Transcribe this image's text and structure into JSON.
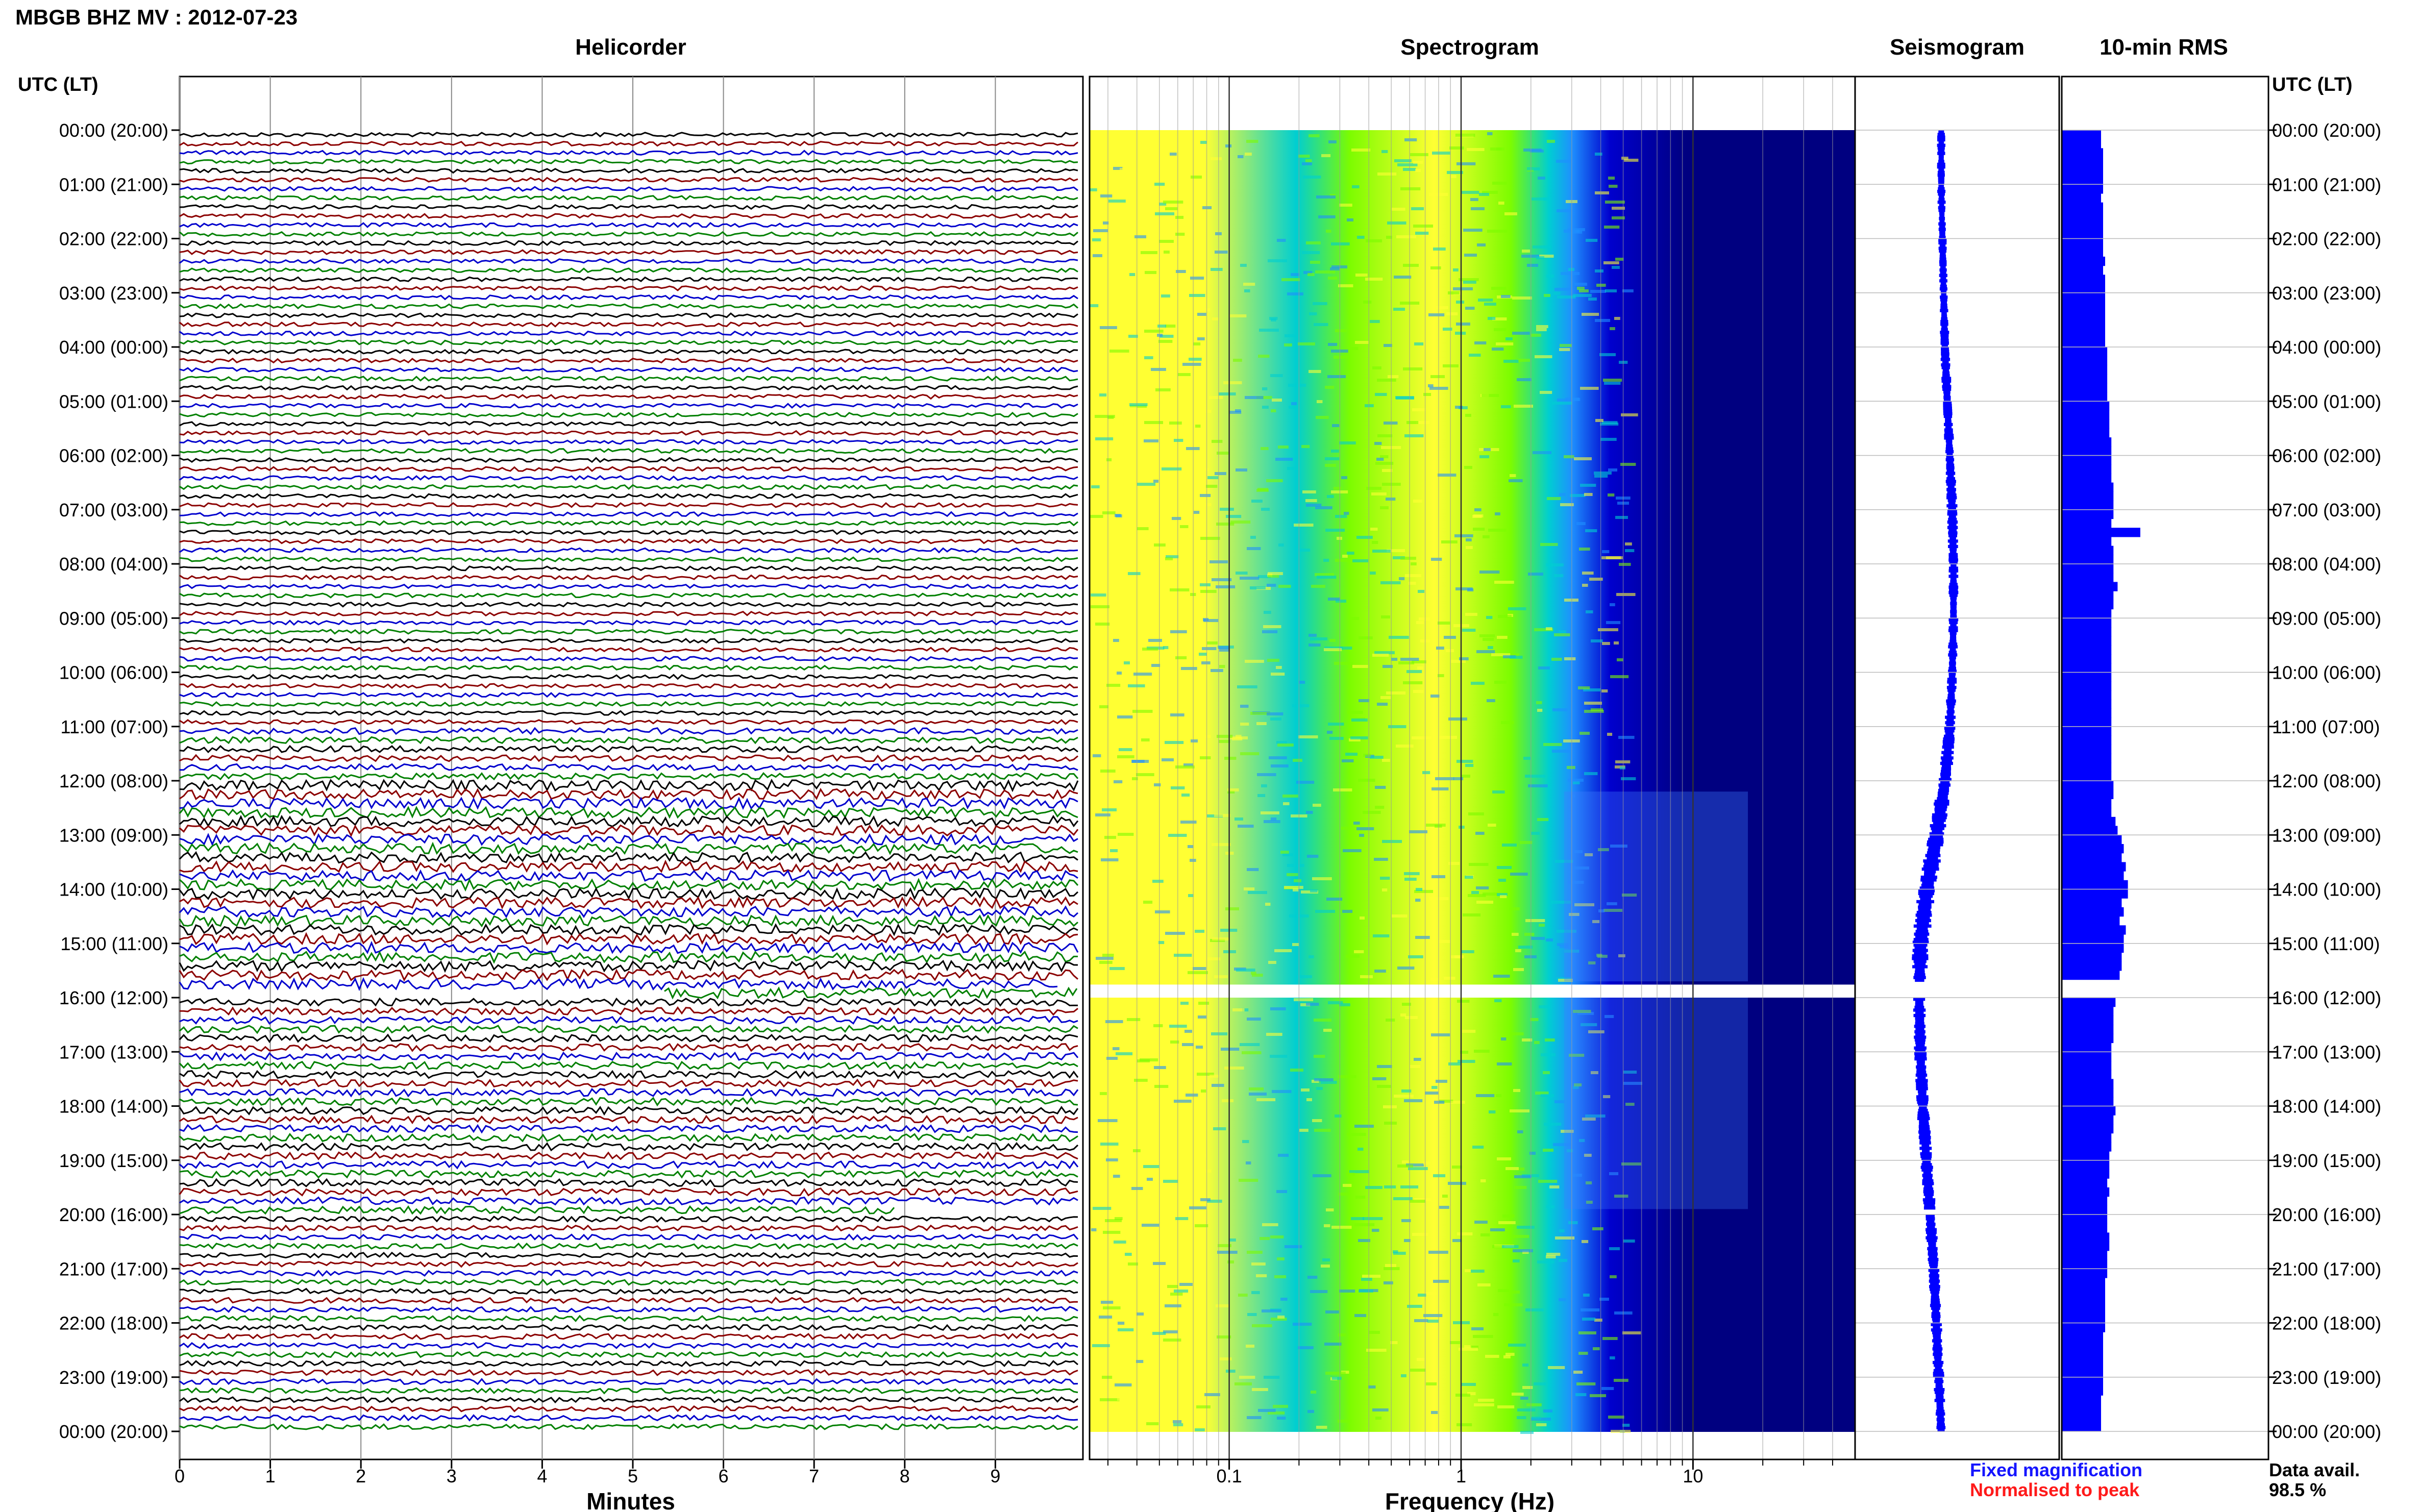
{
  "title": "MBGB BHZ MV : 2012-07-23",
  "panels": {
    "helicorder": "Helicorder",
    "spectrogram": "Spectrogram",
    "seismogram": "Seismogram",
    "rms": "10-min RMS"
  },
  "time_axis_title": "UTC (LT)",
  "time_labels": [
    "00:00 (20:00)",
    "01:00 (21:00)",
    "02:00 (22:00)",
    "03:00 (23:00)",
    "04:00 (00:00)",
    "05:00 (01:00)",
    "06:00 (02:00)",
    "07:00 (03:00)",
    "08:00 (04:00)",
    "09:00 (05:00)",
    "10:00 (06:00)",
    "11:00 (07:00)",
    "12:00 (08:00)",
    "13:00 (09:00)",
    "14:00 (10:00)",
    "15:00 (11:00)",
    "16:00 (12:00)",
    "17:00 (13:00)",
    "18:00 (14:00)",
    "19:00 (15:00)",
    "20:00 (16:00)",
    "21:00 (17:00)",
    "22:00 (18:00)",
    "23:00 (19:00)",
    "00:00 (20:00)"
  ],
  "helicorder": {
    "xlabel": "Minutes",
    "xticks": [
      "0",
      "1",
      "2",
      "3",
      "4",
      "5",
      "6",
      "7",
      "8",
      "9"
    ],
    "trace_colors": [
      "#000000",
      "#8b0000",
      "#0000cd",
      "#008000"
    ],
    "lines_per_hour": 6
  },
  "spectrogram": {
    "xlabel": "Frequency (Hz)",
    "xticks": [
      "0.1",
      "1",
      "10"
    ],
    "scale": "log",
    "colormap": [
      "#ffff33",
      "#7cfc00",
      "#00ced1",
      "#1e90ff",
      "#0000cd",
      "#000080"
    ]
  },
  "legend": {
    "fixed": "Fixed magnification",
    "fixed_color": "#1515ff",
    "peak": "Normalised to peak",
    "peak_color": "#ff1a1a"
  },
  "availability": {
    "label": "Data avail.",
    "value": "98.5 %"
  },
  "chart_data": {
    "type": "bar",
    "title": "10-min RMS",
    "xlabel": "",
    "ylabel": "UTC (LT)",
    "series": [
      {
        "name": "Fixed magnification",
        "color": "#0000ff",
        "values": [
          19,
          19,
          20,
          20,
          20,
          20,
          20,
          19,
          20,
          20,
          20,
          20,
          20,
          20,
          21,
          20,
          21,
          21,
          21,
          21,
          21,
          21,
          21,
          21,
          22,
          22,
          22,
          22,
          22,
          22,
          23,
          23,
          23,
          23,
          24,
          24,
          24,
          24,
          24,
          25,
          25,
          25,
          25,
          24,
          24,
          24,
          25,
          25,
          25,
          25,
          27,
          25,
          25,
          24,
          24,
          24,
          24,
          24,
          24,
          24,
          24,
          24,
          24,
          24,
          24,
          24,
          24,
          24,
          24,
          24,
          24,
          24,
          25,
          25,
          24,
          24,
          26,
          27,
          29,
          30,
          29,
          31,
          30,
          32,
          32,
          29,
          30,
          28,
          31,
          30,
          30,
          29,
          29,
          28,
          0,
          0,
          26,
          25,
          25,
          25,
          25,
          24,
          24,
          24,
          24,
          25,
          25,
          25,
          26,
          25,
          25,
          24,
          24,
          23,
          23,
          23,
          22,
          23,
          22,
          22,
          22,
          22,
          23,
          23,
          22,
          22,
          22,
          21,
          21,
          21,
          21,
          21,
          21,
          20,
          20,
          20,
          20,
          20,
          20,
          20,
          19,
          19,
          19,
          19
        ],
        "special": [
          {
            "index": 44,
            "value": 38
          }
        ]
      }
    ],
    "gaps": [
      {
        "start": 15.7,
        "end": 16.0
      },
      {
        "start": 19.9,
        "end": 20.0
      }
    ],
    "series_notes": {
      "seismogram_center": [
        0.62,
        0.62,
        0.63,
        0.64,
        0.65,
        0.67,
        0.69,
        0.71,
        0.72,
        0.72,
        0.71,
        0.69,
        0.65,
        0.58,
        0.5,
        0.45,
        0.44,
        0.45,
        0.47,
        0.5,
        0.53,
        0.56,
        0.58,
        0.6,
        0.62
      ],
      "seismogram_halfwidth": [
        0.06,
        0.06,
        0.06,
        0.06,
        0.07,
        0.07,
        0.07,
        0.08,
        0.07,
        0.07,
        0.07,
        0.08,
        0.1,
        0.13,
        0.13,
        0.13,
        0.09,
        0.09,
        0.09,
        0.09,
        0.09,
        0.08,
        0.08,
        0.08,
        0.07
      ]
    }
  }
}
